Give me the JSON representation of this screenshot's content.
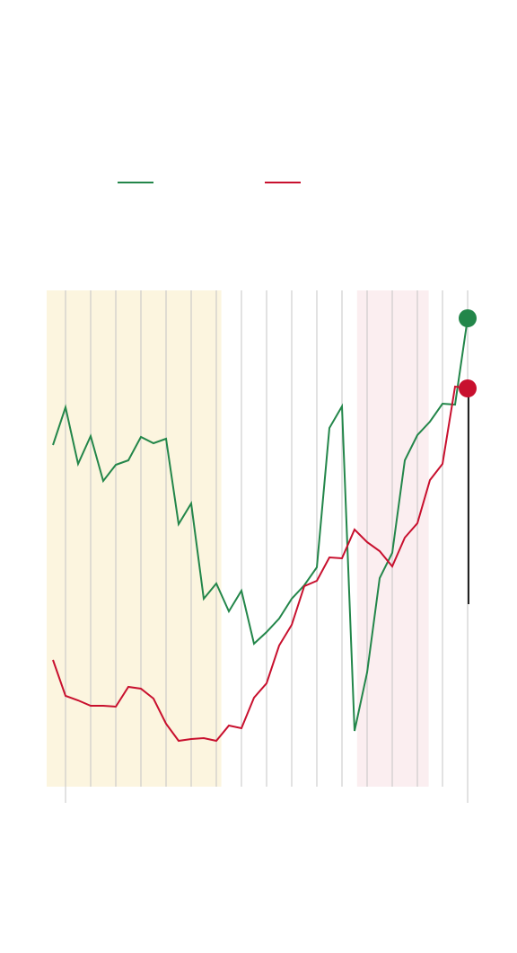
{
  "chart_data": {
    "type": "line",
    "x": [
      0,
      1,
      2,
      3,
      4,
      5,
      6,
      7,
      8,
      9,
      10,
      11,
      12,
      13,
      14,
      15,
      16,
      17,
      18,
      19,
      20,
      21,
      22,
      23,
      24,
      25,
      26,
      27,
      28,
      29,
      30,
      31,
      32,
      33
    ],
    "series": [
      {
        "color": "#23864a",
        "values": [
          405,
          447,
          384,
          415,
          365,
          383,
          388,
          414,
          407,
          412,
          317,
          340,
          234,
          251,
          220,
          243,
          184,
          197,
          212,
          234,
          249,
          269,
          424,
          448,
          87,
          152,
          257,
          285,
          388,
          416,
          431,
          451,
          450,
          546
        ]
      },
      {
        "color": "#c8102e",
        "values": [
          166,
          126,
          121,
          115,
          115,
          114,
          136,
          134,
          123,
          95,
          76,
          78,
          79,
          76,
          93,
          90,
          124,
          140,
          182,
          205,
          248,
          254,
          280,
          279,
          311,
          297,
          287,
          270,
          302,
          318,
          366,
          384,
          470,
          468
        ]
      }
    ],
    "xlim": [
      -0.5,
      33.5
    ],
    "ylim": [
      25,
      577
    ],
    "xticks": [
      1,
      3,
      5,
      7,
      9,
      11,
      13,
      15,
      17,
      19,
      21,
      23,
      25,
      27,
      29,
      31,
      33
    ],
    "bands": [
      {
        "range": [
          -0.5,
          13.4
        ],
        "color": "#fcf5df"
      },
      {
        "range": [
          24.2,
          29.9
        ],
        "color": "#fbeef0"
      }
    ]
  }
}
